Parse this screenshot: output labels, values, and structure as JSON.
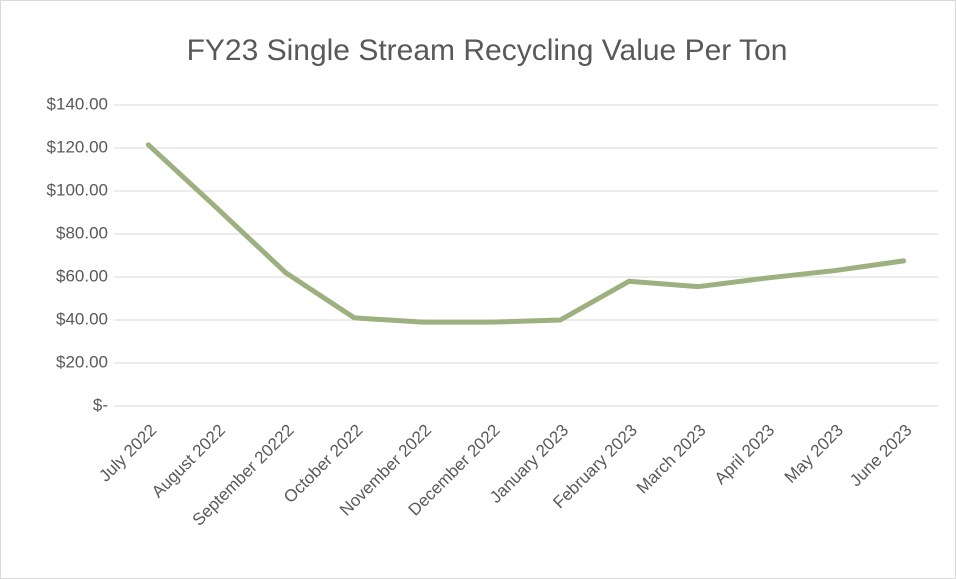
{
  "chart_data": {
    "type": "line",
    "title": "FY23 Single Stream Recycling Value Per Ton",
    "categories": [
      "July 2022",
      "August 2022",
      "September 20222",
      "October 2022",
      "November 2022",
      "December 2022",
      "January 2023",
      "February 2023",
      "March 2023",
      "April 2023",
      "May 2023",
      "June 2023"
    ],
    "series": [
      {
        "name": "Value Per Ton",
        "color": "#9cb080",
        "values": [
          121.5,
          92,
          62,
          41,
          39,
          39,
          40,
          58,
          55.5,
          59.5,
          63,
          67.5
        ]
      }
    ],
    "ylim": [
      0,
      140
    ],
    "yticks": [
      {
        "value": 0,
        "label": "$-"
      },
      {
        "value": 20,
        "label": "$20.00"
      },
      {
        "value": 40,
        "label": "$40.00"
      },
      {
        "value": 60,
        "label": "$60.00"
      },
      {
        "value": 80,
        "label": "$80.00"
      },
      {
        "value": 100,
        "label": "$100.00"
      },
      {
        "value": 120,
        "label": "$120.00"
      },
      {
        "value": 140,
        "label": "$140.00"
      }
    ],
    "grid": true
  }
}
